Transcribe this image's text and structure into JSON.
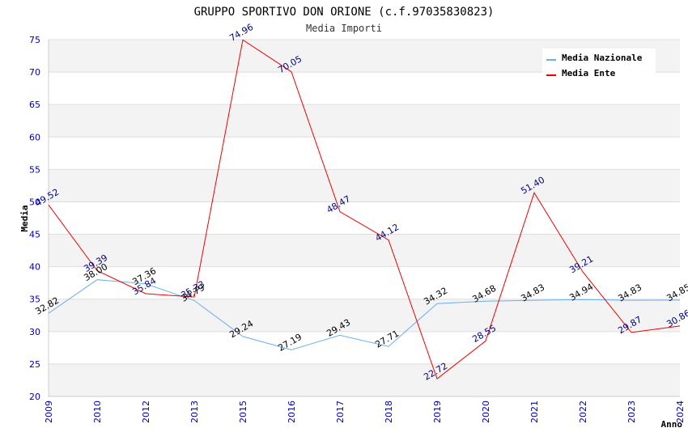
{
  "chart_data": {
    "type": "line",
    "title": "GRUPPO SPORTIVO DON ORIONE (c.f.97035830823)",
    "subtitle": "Media Importi",
    "xlabel": "Anno",
    "ylabel": "Media",
    "ylim": [
      20,
      75
    ],
    "yticks": [
      20,
      25,
      30,
      35,
      40,
      45,
      50,
      55,
      60,
      65,
      70,
      75
    ],
    "categories": [
      "2009",
      "2010",
      "2012",
      "2013",
      "2015",
      "2016",
      "2017",
      "2018",
      "2019",
      "2020",
      "2021",
      "2022",
      "2023",
      "2024"
    ],
    "grid": true,
    "legend_position": "top-right",
    "series": [
      {
        "name": "Media Nazionale",
        "color": "#6aaeea",
        "values": [
          32.82,
          38.0,
          37.36,
          34.79,
          29.24,
          27.19,
          29.43,
          27.71,
          34.32,
          34.68,
          34.83,
          34.94,
          34.83,
          34.85
        ],
        "labels": [
          "32.82",
          "38.00",
          "37.36",
          "34.79",
          "29.24",
          "27.19",
          "29.43",
          "27.71",
          "34.32",
          "34.68",
          "34.83",
          "34.94",
          "34.83",
          "34.85"
        ]
      },
      {
        "name": "Media Ente",
        "color": "#ee0000",
        "values": [
          49.52,
          39.39,
          35.84,
          35.33,
          74.96,
          70.05,
          48.47,
          44.12,
          22.72,
          28.55,
          51.4,
          39.21,
          29.87,
          30.86
        ],
        "labels": [
          "49.52",
          "39.39",
          "35.84",
          "35.33",
          "74.96",
          "70.05",
          "48.47",
          "44.12",
          "22.72",
          "28.55",
          "51.40",
          "39.21",
          "29.87",
          "30.86"
        ]
      }
    ]
  }
}
